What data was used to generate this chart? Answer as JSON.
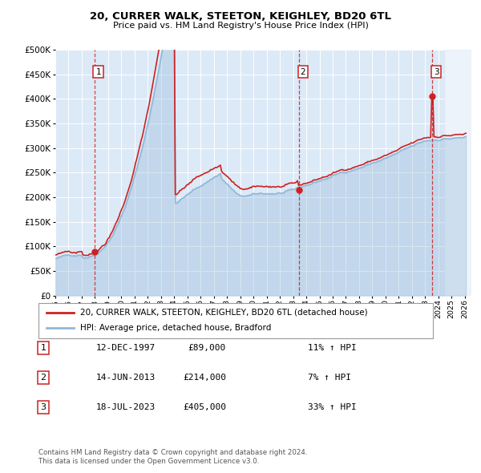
{
  "title": "20, CURRER WALK, STEETON, KEIGHLEY, BD20 6TL",
  "subtitle": "Price paid vs. HM Land Registry's House Price Index (HPI)",
  "ylim": [
    0,
    500000
  ],
  "yticks": [
    0,
    50000,
    100000,
    150000,
    200000,
    250000,
    300000,
    350000,
    400000,
    450000,
    500000
  ],
  "plot_bg": "#dce9f7",
  "legend_line1": "20, CURRER WALK, STEETON, KEIGHLEY, BD20 6TL (detached house)",
  "legend_line2": "HPI: Average price, detached house, Bradford",
  "footnote1": "Contains HM Land Registry data © Crown copyright and database right 2024.",
  "footnote2": "This data is licensed under the Open Government Licence v3.0.",
  "hpi_color": "#92b8d8",
  "price_color": "#cc2222",
  "vline_color": "#cc2222",
  "xmin": 1995,
  "xmax": 2026,
  "hatch_start": 2024.5,
  "table_rows": [
    {
      "num": 1,
      "date": "12-DEC-1997",
      "price": "£89,000",
      "hpi": "11% ↑ HPI"
    },
    {
      "num": 2,
      "date": "14-JUN-2013",
      "price": "£214,000",
      "hpi": "7% ↑ HPI"
    },
    {
      "num": 3,
      "date": "18-JUL-2023",
      "price": "£405,000",
      "hpi": "33% ↑ HPI"
    }
  ],
  "t1_x": 1997.958,
  "t1_y": 89000,
  "t2_x": 2013.458,
  "t2_y": 214000,
  "t3_x": 2023.542,
  "t3_y": 405000
}
